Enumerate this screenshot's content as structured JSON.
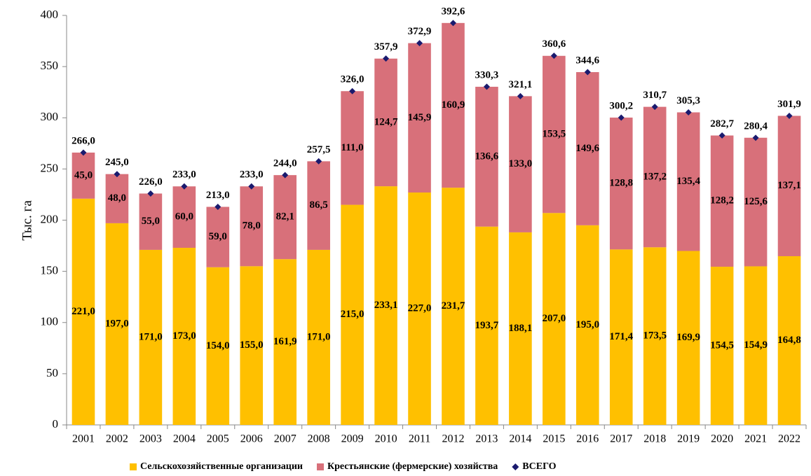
{
  "chart_data": {
    "type": "bar",
    "stacked": true,
    "y_label": "Тыс. га",
    "categories": [
      "2001",
      "2002",
      "2003",
      "2004",
      "2005",
      "2006",
      "2007",
      "2008",
      "2009",
      "2010",
      "2011",
      "2012",
      "2013",
      "2014",
      "2015",
      "2016",
      "2017",
      "2018",
      "2019",
      "2020",
      "2021",
      "2022"
    ],
    "series": [
      {
        "name": "Сельскохозяйственные организации",
        "color": "#FFC000",
        "values": [
          221.0,
          197.0,
          171.0,
          173.0,
          154.0,
          155.0,
          161.9,
          171.0,
          215.0,
          233.1,
          227.0,
          231.7,
          193.7,
          188.1,
          207.0,
          195.0,
          171.4,
          173.5,
          169.9,
          154.5,
          154.9,
          164.8
        ],
        "value_labels": [
          "221,0",
          "197,0",
          "171,0",
          "173,0",
          "154,0",
          "155,0",
          "161,9",
          "171,0",
          "215,0",
          "233,1",
          "227,0",
          "231,7",
          "193,7",
          "188,1",
          "207,0",
          "195,0",
          "171,4",
          "173,5",
          "169,9",
          "154,5",
          "154,9",
          "164,8"
        ]
      },
      {
        "name": "Крестьянские (фермерские) хозяйства",
        "color": "#D8707A",
        "values": [
          45.0,
          48.0,
          55.0,
          60.0,
          59.0,
          78.0,
          82.1,
          86.5,
          111.0,
          124.7,
          145.9,
          160.9,
          136.6,
          133.0,
          153.5,
          149.6,
          128.8,
          137.2,
          135.4,
          128.2,
          125.6,
          137.1
        ],
        "value_labels": [
          "45,0",
          "48,0",
          "55,0",
          "60,0",
          "59,0",
          "78,0",
          "82,1",
          "86,5",
          "111,0",
          "124,7",
          "145,9",
          "160,9",
          "136,6",
          "133,0",
          "153,5",
          "149,6",
          "128,8",
          "137,2",
          "135,4",
          "128,2",
          "125,6",
          "137,1"
        ]
      },
      {
        "name": "ВСЕГО",
        "color": "#1A1A6E",
        "type": "scatter",
        "values": [
          266.0,
          245.0,
          226.0,
          233.0,
          213.0,
          233.0,
          244.0,
          257.5,
          326.0,
          357.9,
          372.9,
          392.6,
          330.3,
          321.1,
          360.6,
          344.6,
          300.2,
          310.7,
          305.3,
          282.7,
          280.4,
          301.9
        ],
        "value_labels": [
          "266,0",
          "245,0",
          "226,0",
          "233,0",
          "213,0",
          "233,0",
          "244,0",
          "257,5",
          "326,0",
          "357,9",
          "372,9",
          "392,6",
          "330,3",
          "321,1",
          "360,6",
          "344,6",
          "300,2",
          "310,7",
          "305,3",
          "282,7",
          "280,4",
          "301,9"
        ]
      }
    ],
    "ylim": [
      0,
      400
    ],
    "yticks": [
      0,
      50,
      100,
      150,
      200,
      250,
      300,
      350,
      400
    ],
    "grid": false
  }
}
